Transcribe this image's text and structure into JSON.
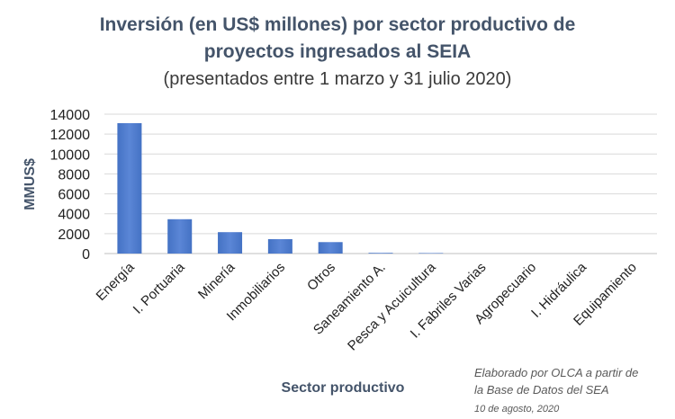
{
  "chart_data": {
    "type": "bar",
    "title_line1": "Inversión (en US$ millones) por sector productivo de",
    "title_line2": "proyectos ingresados al SEIA",
    "subtitle": "(presentados entre 1 marzo y 31 julio 2020)",
    "xlabel": "Sector productivo",
    "ylabel": "MMUS$",
    "ylim": [
      0,
      14000
    ],
    "yticks": [
      "0",
      "2000",
      "4000",
      "6000",
      "8000",
      "10000",
      "12000",
      "14000"
    ],
    "grid": true,
    "bar_color": "#4472c4",
    "categories": [
      "Energía",
      "I. Portuaria",
      "Minería",
      "Inmobiliarios",
      "Otros",
      "Saneamiento A.",
      "Pesca y Acuicultura",
      "I. Fabriles Varias",
      "Agropecuario",
      "I. Hidráulica",
      "Equipamiento"
    ],
    "values": [
      13100,
      3450,
      2150,
      1450,
      1150,
      70,
      50,
      0,
      0,
      0,
      0
    ]
  },
  "note": {
    "line1": "Elaborado por OLCA a partir de",
    "line2": "la Base de Datos del SEA",
    "date": "10 de agosto, 2020"
  }
}
